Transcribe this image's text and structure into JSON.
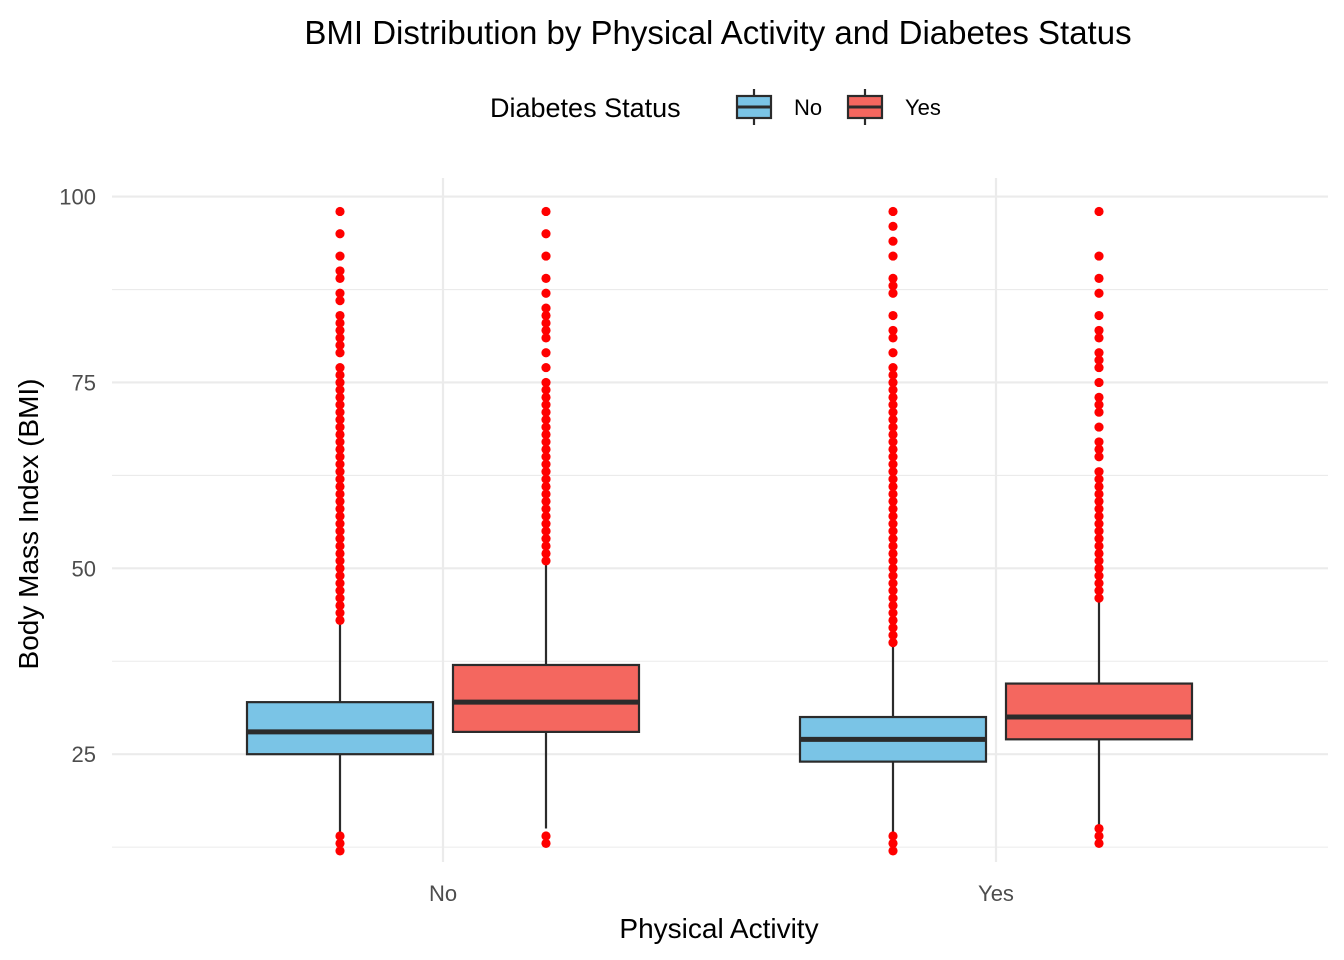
{
  "chart_data": {
    "type": "boxplot",
    "title": "BMI Distribution by Physical Activity and Diabetes Status",
    "xlabel": "Physical Activity",
    "ylabel": "Body Mass Index (BMI)",
    "categories": [
      "No",
      "Yes"
    ],
    "ylim": [
      10.5,
      102.5
    ],
    "yticks": [
      25,
      50,
      75,
      100
    ],
    "grid": true,
    "legend": {
      "title": "Diabetes Status",
      "placement": "top",
      "entries": [
        "No",
        "Yes"
      ]
    },
    "colors": {
      "No": "#7ac4e6",
      "Yes": "#f4675f",
      "outlier": "#ff0000",
      "box_line": "#2b2b2b"
    },
    "series": [
      {
        "name": "No",
        "boxes": [
          {
            "category": "No",
            "whisker_low": 12,
            "q1": 25,
            "median": 28,
            "q3": 32,
            "whisker_high": 42.5,
            "outliers": [
              12,
              13,
              14,
              43,
              44,
              45,
              46,
              47,
              48,
              49,
              50,
              51,
              52,
              53,
              54,
              55,
              56,
              57,
              58,
              59,
              60,
              61,
              62,
              63,
              64,
              65,
              66,
              67,
              68,
              69,
              70,
              71,
              72,
              73,
              74,
              75,
              76,
              77,
              79,
              80,
              81,
              82,
              83,
              84,
              86,
              87,
              89,
              90,
              92,
              95,
              98
            ]
          },
          {
            "category": "Yes",
            "whisker_low": 12,
            "q1": 24,
            "median": 27,
            "q3": 30,
            "whisker_high": 39.5,
            "outliers": [
              12,
              13,
              14,
              40,
              41,
              42,
              43,
              44,
              45,
              46,
              47,
              48,
              49,
              50,
              51,
              52,
              53,
              54,
              55,
              56,
              57,
              58,
              59,
              60,
              61,
              62,
              63,
              64,
              65,
              66,
              67,
              68,
              69,
              70,
              71,
              72,
              73,
              74,
              75,
              76,
              77,
              79,
              81,
              82,
              84,
              87,
              88,
              89,
              92,
              94,
              96,
              98
            ]
          }
        ]
      },
      {
        "name": "Yes",
        "boxes": [
          {
            "category": "No",
            "whisker_low": 15,
            "q1": 28,
            "median": 32,
            "q3": 37,
            "whisker_high": 50.5,
            "outliers": [
              13,
              14,
              51,
              52,
              53,
              54,
              55,
              56,
              57,
              58,
              59,
              60,
              61,
              62,
              63,
              64,
              65,
              66,
              67,
              68,
              69,
              70,
              71,
              72,
              73,
              74,
              75,
              77,
              79,
              81,
              82,
              83,
              84,
              85,
              87,
              89,
              92,
              95,
              98
            ]
          },
          {
            "category": "Yes",
            "whisker_low": 15.5,
            "q1": 27,
            "median": 30,
            "q3": 34.5,
            "whisker_high": 45.5,
            "outliers": [
              13,
              14,
              15,
              46,
              47,
              48,
              49,
              50,
              51,
              52,
              53,
              54,
              55,
              56,
              57,
              58,
              59,
              60,
              61,
              62,
              63,
              65,
              66,
              67,
              69,
              71,
              72,
              73,
              75,
              77,
              78,
              79,
              81,
              82,
              84,
              87,
              89,
              92,
              98
            ]
          }
        ]
      }
    ]
  }
}
